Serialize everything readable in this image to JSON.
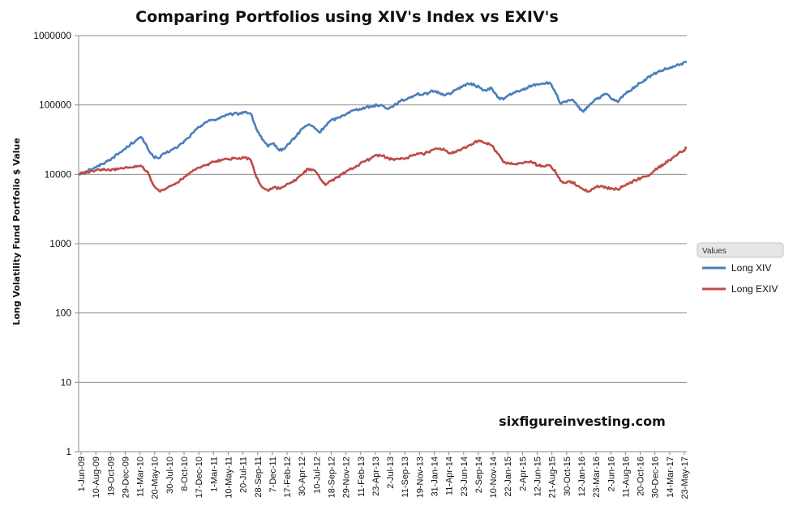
{
  "chart_data": {
    "type": "line",
    "title": "Comparing Portfolios using XIV's Index vs EXIV's",
    "ylabel": "Long Volatility Fund Portfolio $ Value",
    "xlabel": "",
    "yscale": "log",
    "ylim": [
      1,
      1000000
    ],
    "y_ticks": [
      "1",
      "10",
      "100",
      "1000",
      "10000",
      "100000",
      "1000000"
    ],
    "x_tick_labels": [
      "1-Jun-09",
      "10-Aug-09",
      "19-Oct-09",
      "29-Dec-09",
      "11-Mar-10",
      "20-May-10",
      "30-Jul-10",
      "8-Oct-10",
      "17-Dec-10",
      "1-Mar-11",
      "10-May-11",
      "20-Jul-11",
      "28-Sep-11",
      "7-Dec-11",
      "17-Feb-12",
      "30-Apr-12",
      "10-Jul-12",
      "18-Sep-12",
      "29-Nov-12",
      "11-Feb-13",
      "23-Apr-13",
      "2-Jul-13",
      "11-Sep-13",
      "19-Nov-13",
      "31-Jan-14",
      "11-Apr-14",
      "23-Jun-14",
      "2-Sep-14",
      "10-Nov-14",
      "22-Jan-15",
      "2-Apr-15",
      "12-Jun-15",
      "21-Aug-15",
      "30-Oct-15",
      "12-Jan-16",
      "23-Mar-16",
      "2-Jun-16",
      "11-Aug-16",
      "20-Oct-16",
      "30-Dec-16",
      "14-Mar-17",
      "23-May-17"
    ],
    "gridlines": "horizontal",
    "legend": {
      "title": "Values",
      "position": "right"
    },
    "series": [
      {
        "name": "Long XIV",
        "color": "#4a7ebb",
        "values": [
          10000,
          10800,
          11800,
          12500,
          14000,
          15500,
          17500,
          20000,
          23000,
          27000,
          31000,
          34000,
          24000,
          18000,
          17000,
          20000,
          22000,
          24000,
          28000,
          33000,
          40000,
          48000,
          56000,
          60000,
          62000,
          68000,
          72000,
          74000,
          75000,
          80000,
          75000,
          45000,
          32000,
          25000,
          28000,
          22000,
          24000,
          30000,
          36000,
          46000,
          52000,
          48000,
          40000,
          50000,
          60000,
          64000,
          70000,
          78000,
          84000,
          88000,
          92000,
          95000,
          100000,
          98000,
          88000,
          100000,
          112000,
          120000,
          132000,
          145000,
          140000,
          150000,
          158000,
          148000,
          140000,
          150000,
          170000,
          190000,
          200000,
          195000,
          175000,
          160000,
          175000,
          130000,
          120000,
          140000,
          150000,
          160000,
          175000,
          190000,
          200000,
          205000,
          210000,
          160000,
          105000,
          110000,
          120000,
          95000,
          80000,
          100000,
          120000,
          130000,
          145000,
          120000,
          110000,
          140000,
          160000,
          185000,
          210000,
          240000,
          270000,
          300000,
          320000,
          340000,
          360000,
          390000,
          420000
        ]
      },
      {
        "name": "Long EXIV",
        "color": "#be4b48",
        "values": [
          10000,
          10500,
          11000,
          11500,
          11800,
          11600,
          11800,
          12000,
          12300,
          12500,
          12800,
          13000,
          11000,
          7000,
          5800,
          6000,
          6800,
          7500,
          8500,
          10000,
          11500,
          12500,
          13500,
          14500,
          15500,
          16000,
          16500,
          17000,
          17200,
          17500,
          16000,
          9000,
          6500,
          5800,
          6500,
          6200,
          6800,
          7500,
          8500,
          10000,
          12000,
          11500,
          9000,
          7000,
          8000,
          9000,
          10000,
          11500,
          12500,
          14000,
          15500,
          17000,
          19000,
          18500,
          17000,
          16000,
          16500,
          17000,
          18500,
          20000,
          19500,
          21000,
          23000,
          23500,
          22000,
          20000,
          22000,
          24000,
          26000,
          29000,
          30000,
          28000,
          26000,
          20000,
          15000,
          14500,
          14000,
          14500,
          15000,
          15000,
          13500,
          13000,
          13500,
          11500,
          8000,
          7500,
          7800,
          6800,
          6000,
          5700,
          6500,
          6800,
          6400,
          6200,
          6000,
          6800,
          7500,
          8200,
          8800,
          9400,
          10500,
          12500,
          14000,
          16000,
          18500,
          21000,
          24000
        ]
      }
    ]
  },
  "watermark": "sixfigureinvesting.com"
}
